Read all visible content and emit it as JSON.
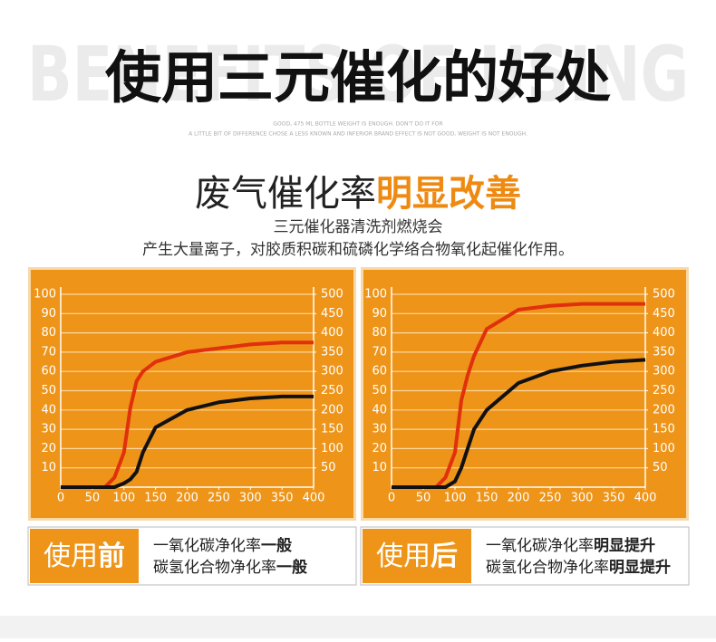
{
  "header": {
    "title": "使用三元催化的好处",
    "background_text": "BENEFITS OF USING",
    "small_lines": [
      "GOOD, 475 ML BOTTLE WEIGHT IS ENOUGH. DON'T DO IT FOR",
      "A LITTLE BIT OF DIFFERENCE CHOSE A LESS KNOWN AND INFERIOR BRAND EFFECT IS NOT GOOD, WEIGHT IS NOT ENOUGH."
    ]
  },
  "subtitle": {
    "text": "废气催化率",
    "highlight": "明显改善"
  },
  "description": [
    "三元催化器清洗剂燃烧会",
    "产生大量离子，对胶质积碳和硫磷化学络合物氧化起催化作用。"
  ],
  "chart_data": [
    {
      "type": "line",
      "x": [
        0,
        70,
        85,
        100,
        110,
        120,
        130,
        150,
        200,
        250,
        300,
        350,
        400
      ],
      "series": [
        {
          "color": "#e0300c",
          "values": [
            0,
            0,
            5,
            18,
            41,
            55,
            60,
            65,
            70,
            72,
            74,
            75,
            75
          ]
        },
        {
          "color": "#111111",
          "values": [
            0,
            0,
            0,
            2,
            4,
            8,
            18,
            31,
            40,
            44,
            46,
            47,
            47
          ]
        }
      ],
      "xlim": [
        0,
        400
      ],
      "ylim": [
        0,
        100
      ],
      "y2lim": [
        0,
        500
      ],
      "xticks": [
        0,
        50,
        100,
        150,
        200,
        250,
        300,
        350,
        400
      ],
      "yticks": [
        10,
        20,
        30,
        40,
        50,
        60,
        70,
        80,
        90,
        100
      ],
      "y2ticks": [
        50,
        100,
        150,
        200,
        250,
        300,
        350,
        400,
        450,
        500
      ],
      "grid": true
    },
    {
      "type": "line",
      "x": [
        0,
        70,
        85,
        100,
        110,
        120,
        130,
        150,
        200,
        250,
        300,
        350,
        400
      ],
      "series": [
        {
          "color": "#e0300c",
          "values": [
            0,
            0,
            5,
            18,
            45,
            58,
            68,
            82,
            92,
            94,
            95,
            95,
            95
          ]
        },
        {
          "color": "#111111",
          "values": [
            0,
            0,
            0,
            3,
            10,
            20,
            30,
            40,
            54,
            60,
            63,
            65,
            66
          ]
        }
      ],
      "xlim": [
        0,
        400
      ],
      "ylim": [
        0,
        100
      ],
      "y2lim": [
        0,
        500
      ],
      "xticks": [
        0,
        50,
        100,
        150,
        200,
        250,
        300,
        350,
        400
      ],
      "yticks": [
        10,
        20,
        30,
        40,
        50,
        60,
        70,
        80,
        90,
        100
      ],
      "y2ticks": [
        50,
        100,
        150,
        200,
        250,
        300,
        350,
        400,
        450,
        500
      ],
      "grid": true
    }
  ],
  "comparison": [
    {
      "label": "使用",
      "label_emphasis": "前",
      "rows": [
        {
          "text": "一氧化碳净化率",
          "emphasis": "一般"
        },
        {
          "text": "碳氢化合物净化率",
          "emphasis": "一般"
        }
      ]
    },
    {
      "label": "使用",
      "label_emphasis": "后",
      "rows": [
        {
          "text": "一氧化碳净化率",
          "emphasis": "明显提升"
        },
        {
          "text": "碳氢化合物净化率",
          "emphasis": "明显提升"
        }
      ]
    }
  ]
}
